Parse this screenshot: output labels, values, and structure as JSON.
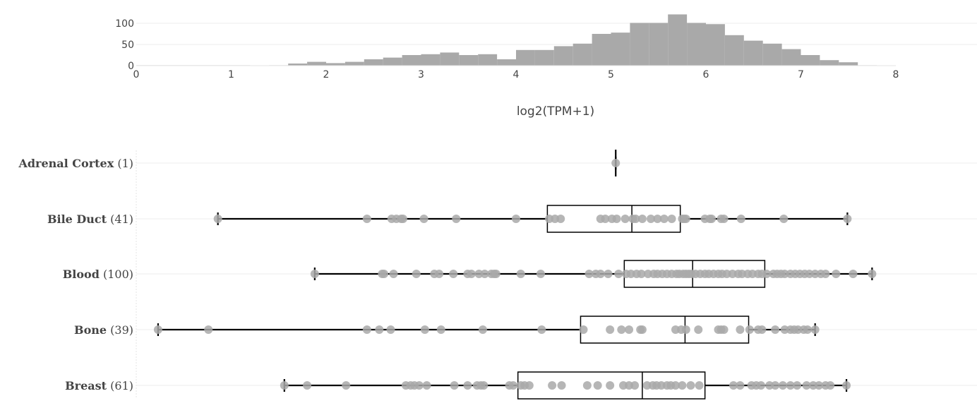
{
  "chart_data": [
    {
      "type": "histogram",
      "xlabel": "log2(TPM+1)",
      "xlim": [
        0,
        8
      ],
      "x_ticks": [
        "0",
        "1",
        "2",
        "3",
        "4",
        "5",
        "6",
        "7",
        "8"
      ],
      "ylim": [
        0,
        125
      ],
      "y_ticks": [
        "0",
        "50",
        "100"
      ],
      "bin_width": 0.2,
      "bins": [
        {
          "x0": 0.0,
          "count": 1
        },
        {
          "x0": 0.2,
          "count": 1
        },
        {
          "x0": 0.4,
          "count": 1
        },
        {
          "x0": 0.6,
          "count": 1
        },
        {
          "x0": 0.8,
          "count": 1
        },
        {
          "x0": 1.0,
          "count": 1
        },
        {
          "x0": 1.4,
          "count": 1
        },
        {
          "x0": 1.6,
          "count": 5
        },
        {
          "x0": 1.8,
          "count": 9
        },
        {
          "x0": 2.0,
          "count": 6
        },
        {
          "x0": 2.2,
          "count": 9
        },
        {
          "x0": 2.4,
          "count": 15
        },
        {
          "x0": 2.6,
          "count": 19
        },
        {
          "x0": 2.8,
          "count": 25
        },
        {
          "x0": 3.0,
          "count": 27
        },
        {
          "x0": 3.2,
          "count": 31
        },
        {
          "x0": 3.4,
          "count": 25
        },
        {
          "x0": 3.6,
          "count": 27
        },
        {
          "x0": 3.8,
          "count": 15
        },
        {
          "x0": 4.0,
          "count": 37
        },
        {
          "x0": 4.2,
          "count": 37
        },
        {
          "x0": 4.4,
          "count": 46
        },
        {
          "x0": 4.6,
          "count": 52
        },
        {
          "x0": 4.8,
          "count": 75
        },
        {
          "x0": 5.0,
          "count": 78
        },
        {
          "x0": 5.2,
          "count": 101
        },
        {
          "x0": 5.4,
          "count": 101
        },
        {
          "x0": 5.6,
          "count": 121
        },
        {
          "x0": 5.8,
          "count": 101
        },
        {
          "x0": 6.0,
          "count": 98
        },
        {
          "x0": 6.2,
          "count": 72
        },
        {
          "x0": 6.4,
          "count": 59
        },
        {
          "x0": 6.6,
          "count": 52
        },
        {
          "x0": 6.8,
          "count": 39
        },
        {
          "x0": 7.0,
          "count": 25
        },
        {
          "x0": 7.2,
          "count": 13
        },
        {
          "x0": 7.4,
          "count": 8
        },
        {
          "x0": 7.6,
          "count": 1
        }
      ],
      "color": "#a9a9a9"
    },
    {
      "type": "box",
      "orientation": "horizontal",
      "xlim": [
        0,
        8
      ],
      "point_color": "#a9a9a9",
      "box_color": "#000000",
      "series": [
        {
          "name": "Adrenal Cortex",
          "count_label": "(1)",
          "min": 5.05,
          "q1": 5.05,
          "median": 5.05,
          "q3": 5.05,
          "max": 5.05,
          "points": [
            5.05
          ]
        },
        {
          "name": "Bile Duct",
          "count_label": "(41)",
          "min": 0.86,
          "q1": 4.33,
          "median": 5.22,
          "q3": 5.73,
          "max": 7.49,
          "points": [
            0.86,
            2.43,
            2.69,
            2.74,
            2.79,
            2.81,
            3.03,
            3.37,
            4.0,
            4.35,
            4.41,
            4.47,
            4.89,
            4.94,
            5.01,
            5.06,
            5.15,
            5.23,
            5.26,
            5.33,
            5.42,
            5.49,
            5.56,
            5.64,
            5.75,
            5.77,
            5.79,
            5.99,
            6.04,
            6.06,
            6.16,
            6.19,
            6.37,
            6.82,
            7.49
          ]
        },
        {
          "name": "Blood",
          "count_label": "(100)",
          "min": 1.88,
          "q1": 5.14,
          "median": 5.86,
          "q3": 6.62,
          "max": 7.75,
          "points": [
            1.88,
            2.59,
            2.61,
            2.71,
            2.95,
            3.14,
            3.19,
            3.34,
            3.49,
            3.53,
            3.61,
            3.67,
            3.74,
            3.77,
            3.79,
            4.05,
            4.26,
            4.77,
            4.84,
            4.89,
            4.97,
            5.08,
            5.16,
            5.21,
            5.27,
            5.32,
            5.39,
            5.45,
            5.49,
            5.54,
            5.59,
            5.64,
            5.69,
            5.72,
            5.76,
            5.79,
            5.82,
            5.85,
            5.89,
            5.94,
            5.99,
            6.03,
            6.08,
            6.13,
            6.17,
            6.22,
            6.28,
            6.34,
            6.38,
            6.44,
            6.49,
            6.55,
            6.59,
            6.64,
            6.71,
            6.75,
            6.79,
            6.83,
            6.89,
            6.94,
            6.99,
            7.04,
            7.09,
            7.15,
            7.21,
            7.26,
            7.37,
            7.55,
            7.75
          ]
        },
        {
          "name": "Bone",
          "count_label": "(39)",
          "min": 0.23,
          "q1": 4.68,
          "median": 5.78,
          "q3": 6.45,
          "max": 7.15,
          "points": [
            0.23,
            0.76,
            2.43,
            2.56,
            2.68,
            3.04,
            3.21,
            3.65,
            4.27,
            4.71,
            4.99,
            5.11,
            5.19,
            5.31,
            5.33,
            5.68,
            5.74,
            5.79,
            5.92,
            6.13,
            6.16,
            6.19,
            6.36,
            6.46,
            6.55,
            6.59,
            6.73,
            6.83,
            6.89,
            6.93,
            6.97,
            7.03,
            7.07,
            7.15
          ]
        },
        {
          "name": "Breast",
          "count_label": "(61)",
          "min": 1.56,
          "q1": 4.02,
          "median": 5.33,
          "q3": 5.99,
          "max": 7.48,
          "points": [
            1.56,
            1.8,
            2.21,
            2.84,
            2.89,
            2.93,
            2.98,
            3.06,
            3.35,
            3.49,
            3.59,
            3.63,
            3.66,
            3.93,
            3.97,
            4.05,
            4.09,
            4.14,
            4.38,
            4.48,
            4.75,
            4.86,
            4.99,
            5.13,
            5.19,
            5.25,
            5.38,
            5.44,
            5.48,
            5.53,
            5.59,
            5.63,
            5.68,
            5.75,
            5.84,
            5.93,
            6.29,
            6.36,
            6.48,
            6.53,
            6.58,
            6.67,
            6.73,
            6.81,
            6.89,
            6.96,
            7.06,
            7.13,
            7.19,
            7.26,
            7.31,
            7.48
          ]
        }
      ]
    }
  ]
}
